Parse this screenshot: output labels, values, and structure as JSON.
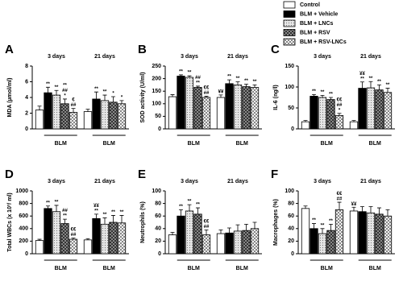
{
  "chart_data": [
    {
      "type": "bar",
      "panel": "A",
      "y_label": "MDA (µmol/ml)",
      "categories": [
        "3 days",
        "21 days"
      ],
      "bracket_label": "BLM",
      "ylim": [
        0,
        8
      ],
      "yticks": [
        0,
        2,
        4,
        6,
        8
      ],
      "series": [
        {
          "name": "Control",
          "color": "#ffffff",
          "pattern": null,
          "values": [
            2.4,
            2.2
          ],
          "errors": [
            0.5,
            0.3
          ],
          "sig": [
            [],
            []
          ]
        },
        {
          "name": "BLM + Vehicle",
          "color": "#000000",
          "pattern": null,
          "values": [
            4.6,
            3.8
          ],
          "errors": [
            0.7,
            0.9
          ],
          "sig": [
            [
              "**"
            ],
            [
              "**"
            ]
          ]
        },
        {
          "name": "BLM + LNCs",
          "color": "#d9d9d9",
          "pattern": "dots",
          "values": [
            4.3,
            3.6
          ],
          "errors": [
            0.6,
            0.7
          ],
          "sig": [
            [
              "**"
            ],
            [
              "**"
            ]
          ]
        },
        {
          "name": "BLM + RSV",
          "color": "#555555",
          "pattern": "checker",
          "values": [
            3.2,
            3.4
          ],
          "errors": [
            0.6,
            0.7
          ],
          "sig": [
            [
              "**",
              "##",
              "*"
            ],
            [
              "*"
            ]
          ]
        },
        {
          "name": "BLM + RSV-LNCs",
          "color": "#ffffff",
          "pattern": "cross",
          "values": [
            2.1,
            3.2
          ],
          "errors": [
            0.5,
            0.4
          ],
          "sig": [
            [
              "€",
              "##"
            ],
            [
              "*"
            ]
          ]
        }
      ]
    },
    {
      "type": "bar",
      "panel": "B",
      "y_label": "SOD activity (U/ml)",
      "categories": [
        "3 days",
        "21 days"
      ],
      "bracket_label": "BLM",
      "ylim": [
        0,
        250
      ],
      "yticks": [
        0,
        50,
        100,
        150,
        200,
        250
      ],
      "series": [
        {
          "name": "Control",
          "color": "#ffffff",
          "pattern": null,
          "values": [
            128,
            125
          ],
          "errors": [
            8,
            10
          ],
          "sig": [
            [],
            [
              "¥¥"
            ]
          ]
        },
        {
          "name": "BLM + Vehicle",
          "color": "#000000",
          "pattern": null,
          "values": [
            210,
            180
          ],
          "errors": [
            5,
            15
          ],
          "sig": [
            [
              "**"
            ],
            [
              "**"
            ]
          ]
        },
        {
          "name": "BLM + LNCs",
          "color": "#d9d9d9",
          "pattern": "dots",
          "values": [
            205,
            175
          ],
          "errors": [
            6,
            12
          ],
          "sig": [
            [
              "**"
            ],
            [
              "**"
            ]
          ]
        },
        {
          "name": "BLM + RSV",
          "color": "#555555",
          "pattern": "checker",
          "values": [
            165,
            168
          ],
          "errors": [
            5,
            10
          ],
          "sig": [
            [
              "##",
              "**"
            ],
            [
              "**"
            ]
          ]
        },
        {
          "name": "BLM + RSV-LNCs",
          "color": "#ffffff",
          "pattern": "cross",
          "values": [
            125,
            165
          ],
          "errors": [
            5,
            10
          ],
          "sig": [
            [
              "€€",
              "##"
            ],
            [
              "**"
            ]
          ]
        }
      ]
    },
    {
      "type": "bar",
      "panel": "C",
      "y_label": "IL-6 (ng/l)",
      "categories": [
        "3 days",
        "21 days"
      ],
      "bracket_label": "BLM",
      "ylim": [
        0,
        150
      ],
      "yticks": [
        0,
        50,
        100,
        150
      ],
      "series": [
        {
          "name": "Control",
          "color": "#ffffff",
          "pattern": null,
          "values": [
            17,
            17
          ],
          "errors": [
            3,
            3
          ],
          "sig": [
            [],
            []
          ]
        },
        {
          "name": "BLM + Vehicle",
          "color": "#000000",
          "pattern": null,
          "values": [
            78,
            97
          ],
          "errors": [
            4,
            15
          ],
          "sig": [
            [
              "**"
            ],
            [
              "¥¥",
              "**"
            ]
          ]
        },
        {
          "name": "BLM + LNCs",
          "color": "#d9d9d9",
          "pattern": "dots",
          "values": [
            75,
            98
          ],
          "errors": [
            5,
            15
          ],
          "sig": [
            [
              "**"
            ],
            [
              "**"
            ]
          ]
        },
        {
          "name": "BLM + RSV",
          "color": "#555555",
          "pattern": "checker",
          "values": [
            70,
            93
          ],
          "errors": [
            5,
            12
          ],
          "sig": [
            [
              "**"
            ],
            [
              "**"
            ]
          ]
        },
        {
          "name": "BLM + RSV-LNCs",
          "color": "#ffffff",
          "pattern": "cross",
          "values": [
            32,
            87
          ],
          "errors": [
            5,
            10
          ],
          "sig": [
            [
              "€€",
              "##",
              "*"
            ],
            [
              "**"
            ]
          ]
        }
      ]
    },
    {
      "type": "bar",
      "panel": "D",
      "y_label": "Total WBCs (x 10³/ ml)",
      "categories": [
        "3 days",
        "21 days"
      ],
      "bracket_label": "BLM",
      "ylim": [
        0,
        1000
      ],
      "yticks": [
        0,
        200,
        400,
        600,
        800,
        1000
      ],
      "series": [
        {
          "name": "Control",
          "color": "#ffffff",
          "pattern": null,
          "values": [
            210,
            220
          ],
          "errors": [
            20,
            20
          ],
          "sig": [
            [],
            []
          ]
        },
        {
          "name": "BLM + Vehicle",
          "color": "#000000",
          "pattern": null,
          "values": [
            720,
            560
          ],
          "errors": [
            40,
            70
          ],
          "sig": [
            [
              "**"
            ],
            [
              "¥¥",
              "**"
            ]
          ]
        },
        {
          "name": "BLM + LNCs",
          "color": "#d9d9d9",
          "pattern": "dots",
          "values": [
            670,
            470
          ],
          "errors": [
            100,
            100
          ],
          "sig": [
            [
              "**"
            ],
            [
              "**"
            ]
          ]
        },
        {
          "name": "BLM + RSV",
          "color": "#555555",
          "pattern": "checker",
          "values": [
            480,
            500
          ],
          "errors": [
            70,
            110
          ],
          "sig": [
            [
              "##",
              "**"
            ],
            [
              "**"
            ]
          ]
        },
        {
          "name": "BLM + RSV-LNCs",
          "color": "#ffffff",
          "pattern": "cross",
          "values": [
            230,
            490
          ],
          "errors": [
            20,
            120
          ],
          "sig": [
            [
              "€€",
              "##"
            ],
            [
              "**"
            ]
          ]
        }
      ]
    },
    {
      "type": "bar",
      "panel": "E",
      "y_label": "Neutrophils (%)",
      "categories": [
        "3 days",
        "21 days"
      ],
      "bracket_label": "BLM",
      "ylim": [
        0,
        100
      ],
      "yticks": [
        0,
        20,
        40,
        60,
        80,
        100
      ],
      "series": [
        {
          "name": "Control",
          "color": "#ffffff",
          "pattern": null,
          "values": [
            30,
            32
          ],
          "errors": [
            4,
            6
          ],
          "sig": [
            [],
            []
          ]
        },
        {
          "name": "BLM + Vehicle",
          "color": "#000000",
          "pattern": null,
          "values": [
            60,
            33
          ],
          "errors": [
            10,
            8
          ],
          "sig": [
            [
              "**"
            ],
            []
          ]
        },
        {
          "name": "BLM + LNCs",
          "color": "#d9d9d9",
          "pattern": "dots",
          "values": [
            68,
            36
          ],
          "errors": [
            10,
            10
          ],
          "sig": [
            [
              "**"
            ],
            []
          ]
        },
        {
          "name": "BLM + RSV",
          "color": "#555555",
          "pattern": "checker",
          "values": [
            63,
            37
          ],
          "errors": [
            10,
            10
          ],
          "sig": [
            [
              "**"
            ],
            []
          ]
        },
        {
          "name": "BLM + RSV-LNCs",
          "color": "#ffffff",
          "pattern": "cross",
          "values": [
            30,
            40
          ],
          "errors": [
            8,
            10
          ],
          "sig": [
            [
              "€€",
              "##"
            ],
            []
          ]
        }
      ]
    },
    {
      "type": "bar",
      "panel": "F",
      "y_label": "Macrophages (%)",
      "categories": [
        "3 days",
        "21 days"
      ],
      "bracket_label": "BLM",
      "ylim": [
        0,
        100
      ],
      "yticks": [
        0,
        20,
        40,
        60,
        80,
        100
      ],
      "series": [
        {
          "name": "Control",
          "color": "#ffffff",
          "pattern": null,
          "values": [
            72,
            68
          ],
          "errors": [
            4,
            6
          ],
          "sig": [
            [],
            [
              "¥¥"
            ]
          ]
        },
        {
          "name": "BLM + Vehicle",
          "color": "#000000",
          "pattern": null,
          "values": [
            40,
            67
          ],
          "errors": [
            8,
            8
          ],
          "sig": [
            [
              "**"
            ],
            []
          ]
        },
        {
          "name": "BLM + LNCs",
          "color": "#d9d9d9",
          "pattern": "dots",
          "values": [
            32,
            65
          ],
          "errors": [
            8,
            10
          ],
          "sig": [
            [
              "**"
            ],
            []
          ]
        },
        {
          "name": "BLM + RSV",
          "color": "#555555",
          "pattern": "checker",
          "values": [
            37,
            63
          ],
          "errors": [
            10,
            10
          ],
          "sig": [
            [
              "**"
            ],
            []
          ]
        },
        {
          "name": "BLM + RSV-LNCs",
          "color": "#ffffff",
          "pattern": "cross",
          "values": [
            70,
            60
          ],
          "errors": [
            12,
            10
          ],
          "sig": [
            [
              "€€",
              "##"
            ],
            []
          ]
        }
      ]
    }
  ]
}
